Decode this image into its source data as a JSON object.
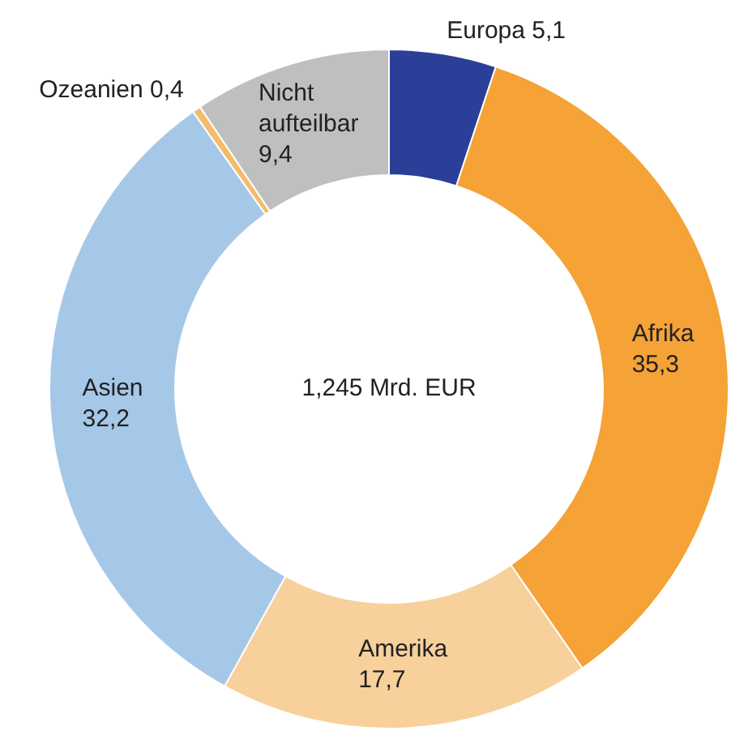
{
  "chart_data": {
    "type": "donut",
    "categories": [
      "Europa",
      "Afrika",
      "Amerika",
      "Asien",
      "Ozeanien",
      "Nicht aufteilbar"
    ],
    "values": [
      5.1,
      35.3,
      17.7,
      32.2,
      0.4,
      9.4
    ],
    "value_labels": [
      "5,1",
      "35,3",
      "17,7",
      "32,2",
      "0,4",
      "9,4"
    ],
    "colors": [
      "#2b3f98",
      "#f5a236",
      "#f8d09b",
      "#a6c8e8",
      "#f3bc6a",
      "#bfbfbf"
    ],
    "annotations": [
      "1,245 Mrd. EUR"
    ],
    "legend": false
  }
}
